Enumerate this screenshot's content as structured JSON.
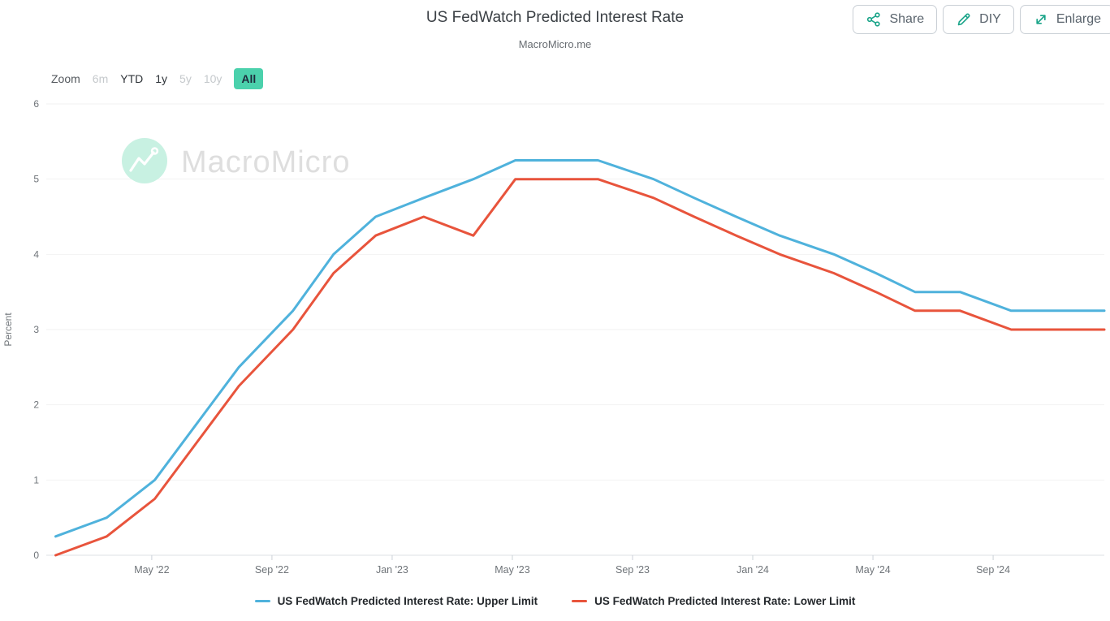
{
  "header": {
    "title": "US FedWatch Predicted Interest Rate",
    "subtitle": "MacroMicro.me",
    "buttons": {
      "share": "Share",
      "diy": "DIY",
      "enlarge": "Enlarge"
    }
  },
  "toolbar": {
    "zoom_label": "Zoom",
    "ranges": [
      {
        "label": "6m",
        "state": "disabled"
      },
      {
        "label": "YTD",
        "state": "enabled"
      },
      {
        "label": "1y",
        "state": "enabled"
      },
      {
        "label": "5y",
        "state": "disabled"
      },
      {
        "label": "10y",
        "state": "disabled"
      },
      {
        "label": "All",
        "state": "active"
      }
    ],
    "active_bg": "#4BD1AC"
  },
  "watermark": {
    "text": "MacroMicro",
    "icon": "macromicro-logo-icon",
    "circle_color": "#C8F1E2",
    "text_color": "#dedede"
  },
  "chart_data": {
    "type": "line",
    "title": "US FedWatch Predicted Interest Rate",
    "subtitle": "MacroMicro.me",
    "ylabel": "Percent",
    "ylim": [
      0,
      6
    ],
    "yticks": [
      0,
      1,
      2,
      3,
      4,
      5,
      6
    ],
    "grid": "horizontal gridlines only, very light",
    "legend_position": "bottom-center",
    "x_unit": "months since Jan 2022 (timeline Jan '22 - Dec '24)",
    "xlim": [
      0.49,
      35.7
    ],
    "xticks": [
      {
        "m": 4,
        "label": "May '22"
      },
      {
        "m": 8,
        "label": "Sep '22"
      },
      {
        "m": 12,
        "label": "Jan '23"
      },
      {
        "m": 16,
        "label": "May '23"
      },
      {
        "m": 20,
        "label": "Sep '23"
      },
      {
        "m": 24,
        "label": "Jan '24"
      },
      {
        "m": 28,
        "label": "May '24"
      },
      {
        "m": 32,
        "label": "Sep '24"
      }
    ],
    "x": [
      0.8,
      2.5,
      4.1,
      5.5,
      6.9,
      8.7,
      10.05,
      11.45,
      13.05,
      14.7,
      16.1,
      18.85,
      20.7,
      22.05,
      23.45,
      24.9,
      26.7,
      28.1,
      29.4,
      30.9,
      32.6,
      35.7
    ],
    "series": [
      {
        "name": "US FedWatch Predicted Interest Rate: Upper Limit",
        "color": "#4FB2DC",
        "values": [
          0.25,
          0.5,
          1.0,
          1.75,
          2.5,
          3.25,
          4.0,
          4.5,
          4.75,
          5.0,
          5.25,
          5.25,
          5.0,
          4.75,
          4.5,
          4.25,
          4.0,
          3.75,
          3.5,
          3.5,
          3.25,
          3.25
        ]
      },
      {
        "name": "US FedWatch Predicted Interest Rate: Lower Limit",
        "color": "#E8543C",
        "values": [
          0.0,
          0.25,
          0.75,
          1.5,
          2.25,
          3.0,
          3.75,
          4.25,
          4.5,
          4.25,
          5.0,
          5.0,
          4.75,
          4.5,
          4.25,
          4.0,
          3.75,
          3.5,
          3.25,
          3.25,
          3.0,
          3.0
        ]
      }
    ],
    "peak": {
      "upper": 5.25,
      "lower": 5.0,
      "plateau": "May '23 - Jul '23"
    },
    "end": {
      "upper": 3.25,
      "lower": 3.0
    }
  },
  "colors": {
    "upper_line": "#4FB2DC",
    "lower_line": "#E8543C",
    "button_icon_teal": "#1AA489",
    "active_range_bg": "#4BD1AC",
    "gridline": "#f2f2f2",
    "axis_line": "#dde1e5",
    "axis_text": "#6f7479"
  }
}
